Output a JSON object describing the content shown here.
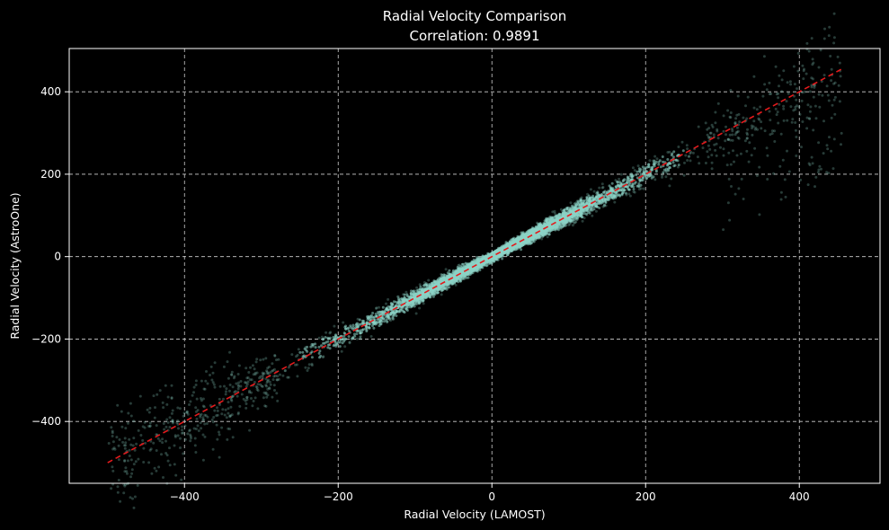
{
  "chart_data": {
    "type": "scatter",
    "title": "Radial Velocity Comparison",
    "subtitle": "Correlation: 0.9891",
    "xlabel": "Radial Velocity (LAMOST)",
    "ylabel": "Radial Velocity (AstroOne)",
    "xlim": [
      -550,
      505
    ],
    "ylim": [
      -550,
      505
    ],
    "xticks": [
      -400,
      -200,
      0,
      200,
      400
    ],
    "yticks": [
      -400,
      -200,
      0,
      200,
      400
    ],
    "grid": true,
    "grid_style": "dashed",
    "point_color": "#8dd3c7",
    "reference_line": {
      "style": "dashed",
      "color": "#e41a1c",
      "x": [
        -500,
        455
      ],
      "y": [
        -500,
        455
      ]
    },
    "scatter_description": {
      "n_points_approx": 6000,
      "relation": "y ≈ x",
      "x_range": [
        -500,
        455
      ],
      "dense_core_x_range": [
        -230,
        250
      ],
      "spread_increases_toward_extremes": true
    },
    "background": "#000000",
    "foreground": "#ffffff"
  }
}
